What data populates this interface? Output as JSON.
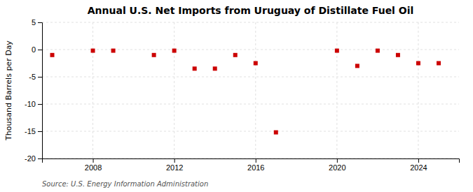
{
  "chart_data": {
    "type": "scatter",
    "title": "Annual U.S. Net Imports from Uruguay of Distillate Fuel Oil",
    "y_label": "Thousand Barrels per Day",
    "annotation": "Source: U.S. Energy Information Administration",
    "x": [
      2006,
      2008,
      2009,
      2011,
      2012,
      2013,
      2014,
      2015,
      2016,
      2017,
      2020,
      2021,
      2022,
      2023,
      2024,
      2025
    ],
    "values": [
      -1.0,
      -0.2,
      -0.2,
      -1.0,
      -0.2,
      -3.5,
      -3.5,
      -1.0,
      -2.5,
      -15.2,
      -0.2,
      -3.0,
      -0.2,
      -1.0,
      -2.5,
      -2.5
    ],
    "color": "#cc0000",
    "marker": "square",
    "xlim": [
      2005.5,
      2026
    ],
    "xticks": [
      2008,
      2012,
      2016,
      2020,
      2024
    ],
    "ylim": [
      -20,
      5
    ],
    "yticks": [
      -20,
      -15,
      -10,
      -5,
      0,
      5
    ],
    "grid": true
  }
}
